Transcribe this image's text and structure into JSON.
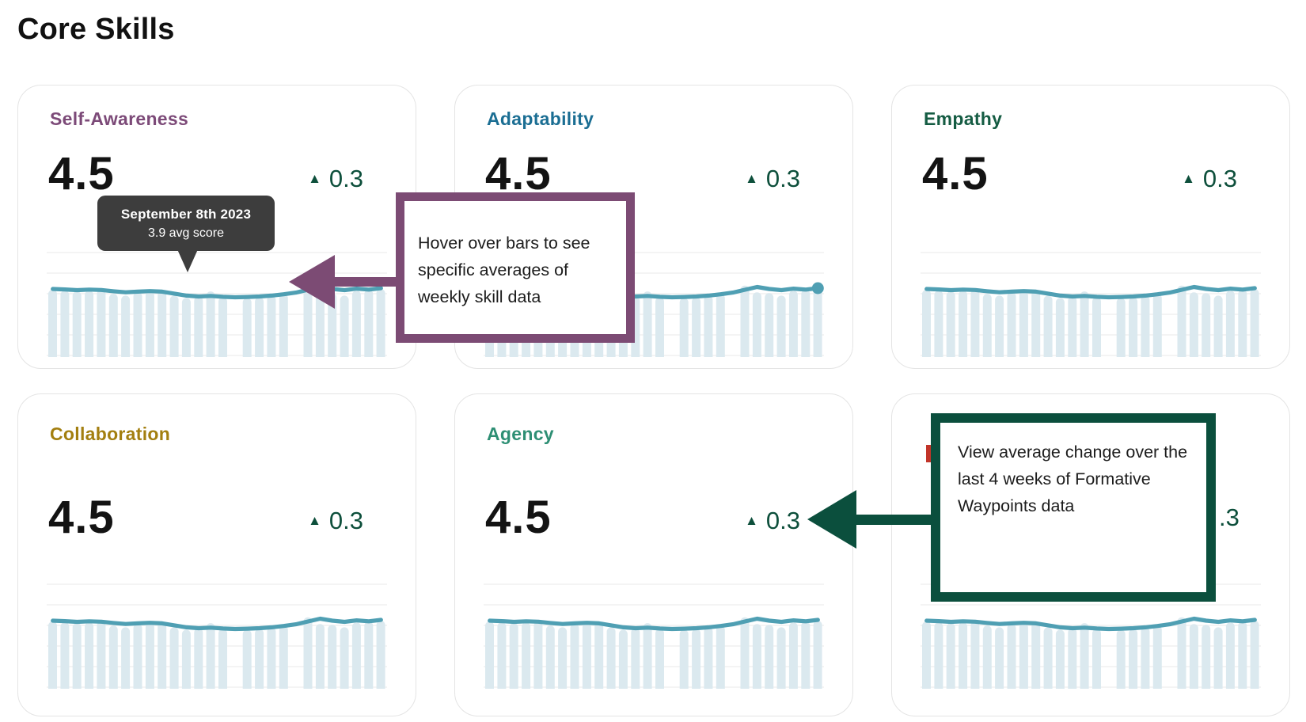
{
  "page": {
    "title": "Core Skills",
    "background": "#ffffff"
  },
  "icons": {
    "trend_up": "▲"
  },
  "colors": {
    "bar_fill": "#dbe9ef",
    "line_stroke": "#4f9fb3",
    "gridline": "#f0f0f0",
    "trend_green": "#0d4f3b",
    "tooltip_bg": "#3d3d3d",
    "callout_purple": "#7c4b74",
    "callout_green": "#0b4f3d",
    "hidden_title_red": "#c23429"
  },
  "tooltip": {
    "date": "September 8th 2023",
    "score": "3.9 avg score"
  },
  "callouts": {
    "hover": {
      "text": "Hover over bars to see specific averages of weekly skill data"
    },
    "change": {
      "text": "View average change over the last 4 weeks of Formative Waypoints data"
    }
  },
  "cards": [
    {
      "title": "Self-Awareness",
      "title_color": "#7c4a78",
      "score": "4.5",
      "change": "0.3"
    },
    {
      "title": "Adaptability",
      "title_color": "#1b6e93",
      "score": "4.5",
      "change": "0.3"
    },
    {
      "title": "Empathy",
      "title_color": "#155c43",
      "score": "4.5",
      "change": "0.3"
    },
    {
      "title": "Collaboration",
      "title_color": "#a37f10",
      "score": "4.5",
      "change": "0.3"
    },
    {
      "title": "Agency",
      "title_color": "#2e8f74",
      "score": "4.5",
      "change": "0.3"
    },
    {
      "title": "",
      "title_color": "#c23429",
      "score": "",
      "change": ".3"
    }
  ],
  "chart_data": [
    {
      "type": "bar",
      "skill": "Self-Awareness",
      "current_avg": 4.5,
      "change_last_4_weeks": 0.3,
      "ylim": [
        0,
        5
      ],
      "grid": true,
      "x_unit": "weeks",
      "highlighted_point": {
        "date": "September 8th 2023",
        "avg_score": 3.9
      },
      "bar_values": [
        3.95,
        3.9,
        3.85,
        3.9,
        3.95,
        3.7,
        3.6,
        3.8,
        3.85,
        3.9,
        3.6,
        3.45,
        3.55,
        3.85,
        3.5,
        null,
        3.45,
        3.5,
        3.6,
        3.7,
        null,
        4.2,
        3.8,
        3.75,
        3.6,
        3.9,
        3.95,
        4.0
      ],
      "line_values": [
        4.0,
        3.97,
        3.93,
        3.96,
        3.94,
        3.86,
        3.8,
        3.84,
        3.87,
        3.84,
        3.72,
        3.6,
        3.55,
        3.58,
        3.53,
        3.5,
        3.52,
        3.55,
        3.6,
        3.68,
        3.78,
        3.95,
        4.12,
        4.0,
        3.93,
        4.02,
        3.96,
        4.05
      ],
      "end_dot": false
    },
    {
      "type": "bar",
      "skill": "Adaptability",
      "current_avg": 4.5,
      "change_last_4_weeks": 0.3,
      "ylim": [
        0,
        5
      ],
      "grid": true,
      "x_unit": "weeks",
      "bar_values": [
        3.95,
        3.9,
        3.85,
        3.9,
        3.95,
        3.7,
        3.6,
        3.8,
        3.85,
        3.9,
        3.6,
        3.45,
        3.55,
        3.85,
        3.5,
        null,
        3.45,
        3.5,
        3.6,
        3.7,
        null,
        4.2,
        3.8,
        3.75,
        3.6,
        3.9,
        3.95,
        4.0
      ],
      "line_values": [
        4.0,
        3.97,
        3.93,
        3.96,
        3.94,
        3.86,
        3.8,
        3.84,
        3.87,
        3.84,
        3.72,
        3.6,
        3.55,
        3.58,
        3.53,
        3.5,
        3.52,
        3.55,
        3.6,
        3.68,
        3.78,
        3.95,
        4.12,
        4.0,
        3.93,
        4.02,
        3.96,
        4.05
      ],
      "end_dot": true
    },
    {
      "type": "bar",
      "skill": "Empathy",
      "current_avg": 4.5,
      "change_last_4_weeks": 0.3,
      "ylim": [
        0,
        5
      ],
      "grid": true,
      "x_unit": "weeks",
      "bar_values": [
        3.95,
        3.9,
        3.85,
        3.9,
        3.95,
        3.7,
        3.6,
        3.8,
        3.85,
        3.9,
        3.6,
        3.45,
        3.55,
        3.85,
        3.5,
        null,
        3.45,
        3.5,
        3.6,
        3.7,
        null,
        4.2,
        3.8,
        3.75,
        3.6,
        3.9,
        3.95,
        4.0
      ],
      "line_values": [
        4.0,
        3.97,
        3.93,
        3.96,
        3.94,
        3.86,
        3.8,
        3.84,
        3.87,
        3.84,
        3.72,
        3.6,
        3.55,
        3.58,
        3.53,
        3.5,
        3.52,
        3.55,
        3.6,
        3.68,
        3.78,
        3.95,
        4.12,
        4.0,
        3.93,
        4.02,
        3.96,
        4.05
      ],
      "end_dot": false
    },
    {
      "type": "bar",
      "skill": "Collaboration",
      "current_avg": 4.5,
      "change_last_4_weeks": 0.3,
      "ylim": [
        0,
        5
      ],
      "grid": true,
      "x_unit": "weeks",
      "bar_values": [
        3.95,
        3.9,
        3.85,
        3.9,
        3.95,
        3.7,
        3.6,
        3.8,
        3.85,
        3.9,
        3.6,
        3.45,
        3.55,
        3.85,
        3.5,
        null,
        3.45,
        3.5,
        3.6,
        3.7,
        null,
        4.2,
        3.8,
        3.75,
        3.6,
        3.9,
        3.95,
        4.0
      ],
      "line_values": [
        4.0,
        3.97,
        3.93,
        3.96,
        3.94,
        3.86,
        3.8,
        3.84,
        3.87,
        3.84,
        3.72,
        3.6,
        3.55,
        3.58,
        3.53,
        3.5,
        3.52,
        3.55,
        3.6,
        3.68,
        3.78,
        3.95,
        4.12,
        4.0,
        3.93,
        4.02,
        3.96,
        4.05
      ],
      "end_dot": false
    },
    {
      "type": "bar",
      "skill": "Agency",
      "current_avg": 4.5,
      "change_last_4_weeks": 0.3,
      "ylim": [
        0,
        5
      ],
      "grid": true,
      "x_unit": "weeks",
      "bar_values": [
        3.95,
        3.9,
        3.85,
        3.9,
        3.95,
        3.7,
        3.6,
        3.8,
        3.85,
        3.9,
        3.6,
        3.45,
        3.55,
        3.85,
        3.5,
        null,
        3.45,
        3.5,
        3.6,
        3.7,
        null,
        4.2,
        3.8,
        3.75,
        3.6,
        3.9,
        3.95,
        4.0
      ],
      "line_values": [
        4.0,
        3.97,
        3.93,
        3.96,
        3.94,
        3.86,
        3.8,
        3.84,
        3.87,
        3.84,
        3.72,
        3.6,
        3.55,
        3.58,
        3.53,
        3.5,
        3.52,
        3.55,
        3.6,
        3.68,
        3.78,
        3.95,
        4.12,
        4.0,
        3.93,
        4.02,
        3.96,
        4.05
      ],
      "end_dot": false
    },
    {
      "type": "bar",
      "skill": "",
      "change_last_4_weeks": 0.3,
      "ylim": [
        0,
        5
      ],
      "grid": true,
      "x_unit": "weeks",
      "bar_values": [
        3.95,
        3.9,
        3.85,
        3.9,
        3.95,
        3.7,
        3.6,
        3.8,
        3.85,
        3.9,
        3.6,
        3.45,
        3.55,
        3.85,
        3.5,
        null,
        3.45,
        3.5,
        3.6,
        3.7,
        null,
        4.2,
        3.8,
        3.75,
        3.6,
        3.9,
        3.95,
        4.0
      ],
      "line_values": [
        4.0,
        3.97,
        3.93,
        3.96,
        3.94,
        3.86,
        3.8,
        3.84,
        3.87,
        3.84,
        3.72,
        3.6,
        3.55,
        3.58,
        3.53,
        3.5,
        3.52,
        3.55,
        3.6,
        3.68,
        3.78,
        3.95,
        4.12,
        4.0,
        3.93,
        4.02,
        3.96,
        4.05
      ],
      "end_dot": false
    }
  ]
}
